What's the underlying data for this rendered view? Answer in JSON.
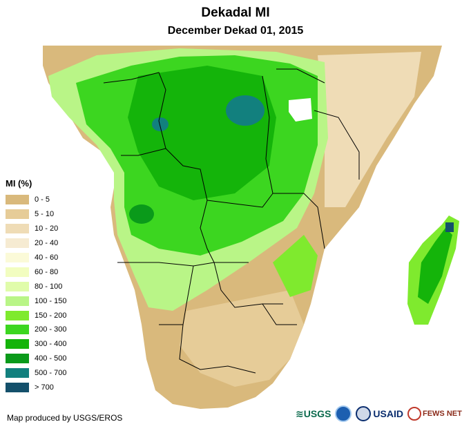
{
  "title": "Dekadal MI",
  "subtitle": "December Dekad 01, 2015",
  "legend": {
    "title": "MI (%)",
    "items": [
      {
        "label": "0 - 5",
        "color": "#d9b97c"
      },
      {
        "label": "5 - 10",
        "color": "#e6cc98"
      },
      {
        "label": "10 - 20",
        "color": "#efdcb6"
      },
      {
        "label": "20 - 40",
        "color": "#f6ebd2"
      },
      {
        "label": "40 - 60",
        "color": "#fbfad8"
      },
      {
        "label": "60 - 80",
        "color": "#f2fdc0"
      },
      {
        "label": "80 - 100",
        "color": "#e0fcaa"
      },
      {
        "label": "100 - 150",
        "color": "#b9f587"
      },
      {
        "label": "150 - 200",
        "color": "#7fea2e"
      },
      {
        "label": "200 - 300",
        "color": "#3cd620"
      },
      {
        "label": "300 - 400",
        "color": "#14b40a"
      },
      {
        "label": "400 - 500",
        "color": "#0a9a1a"
      },
      {
        "label": "500 - 700",
        "color": "#12807e"
      },
      {
        "label": "> 700",
        "color": "#14506b"
      }
    ]
  },
  "credit": "Map produced by USGS/EROS",
  "logos": {
    "usgs": "USGS",
    "usaid": "USAID",
    "fews": "FEWS NET"
  }
}
